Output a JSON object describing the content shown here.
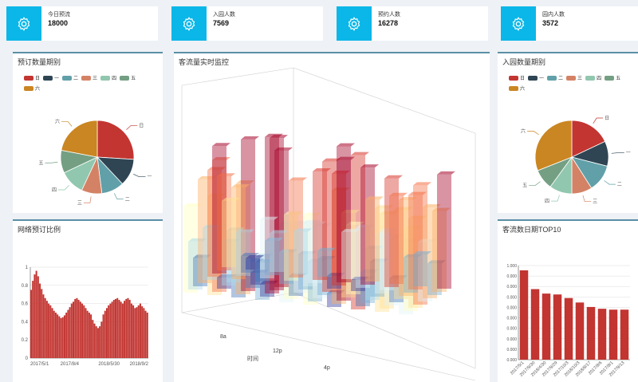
{
  "stats": [
    {
      "label": "今日预流",
      "value": "18000"
    },
    {
      "label": "入园人数",
      "value": "7569"
    },
    {
      "label": "预约人数",
      "value": "16278"
    },
    {
      "label": "园内人数",
      "value": "3572"
    }
  ],
  "colors": {
    "accent": "#0bb7e8",
    "pie": [
      "#c23531",
      "#2f4554",
      "#61a0a8",
      "#d48265",
      "#91c7ae",
      "#749f83",
      "#ca8622"
    ],
    "bar": "#c23531"
  },
  "panels": {
    "booking_pie_title": "预订数量期别",
    "network_title": "网络预订比例",
    "monitor_title": "客流量实时监控",
    "entry_pie_title": "入园数量期别",
    "top10_title": "客流数日期TOP10"
  },
  "legend": [
    "日",
    "一",
    "二",
    "三",
    "四",
    "五",
    "六"
  ],
  "monitor_labels": {
    "y_axis": "时间",
    "ticks": [
      "8a",
      "12p",
      "4p"
    ]
  },
  "chart_data": [
    {
      "type": "pie",
      "title": "预订数量期别",
      "categories": [
        "日",
        "一",
        "二",
        "三",
        "四",
        "五",
        "六"
      ],
      "values": [
        26,
        12,
        10,
        9,
        11,
        10,
        22
      ]
    },
    {
      "type": "area",
      "title": "网络预订比例",
      "x_ticks": [
        "2017/5/1",
        "2017/8/4",
        "2018/5/30",
        "2018/9/2"
      ],
      "ylim": [
        0,
        1
      ],
      "y_ticks": [
        "0",
        "0.2",
        "0.4",
        "0.6",
        "0.8",
        "1"
      ],
      "values": [
        0.75,
        0.85,
        0.92,
        0.96,
        0.9,
        0.82,
        0.76,
        0.7,
        0.66,
        0.63,
        0.6,
        0.58,
        0.55,
        0.52,
        0.5,
        0.48,
        0.46,
        0.44,
        0.45,
        0.47,
        0.5,
        0.53,
        0.56,
        0.6,
        0.62,
        0.65,
        0.66,
        0.64,
        0.62,
        0.6,
        0.58,
        0.55,
        0.52,
        0.5,
        0.48,
        0.42,
        0.38,
        0.35,
        0.33,
        0.35,
        0.4,
        0.48,
        0.52,
        0.55,
        0.58,
        0.6,
        0.62,
        0.64,
        0.65,
        0.66,
        0.64,
        0.62,
        0.6,
        0.63,
        0.65,
        0.66,
        0.64,
        0.6,
        0.58,
        0.55,
        0.56,
        0.58,
        0.6,
        0.57,
        0.55,
        0.52,
        0.5
      ]
    },
    {
      "type": "pie",
      "title": "入园数量期别",
      "categories": [
        "日",
        "一",
        "二",
        "三",
        "四",
        "五",
        "六"
      ],
      "values": [
        18,
        11,
        12,
        9,
        10,
        9,
        31
      ]
    },
    {
      "type": "bar",
      "title": "客流数日期TOP10",
      "categories": [
        "2017/5/1",
        "2017/9/30",
        "2018/4/30",
        "2017/9/29",
        "2017/10/3",
        "2018/10/3",
        "2018/8/17",
        "2017/8/6",
        "2017/8/1",
        "2017/9/13"
      ],
      "values": [
        1.0,
        0.79,
        0.74,
        0.73,
        0.69,
        0.64,
        0.59,
        0.57,
        0.56,
        0.56
      ],
      "y_ticks": [
        "0.000",
        "0.000",
        "0.000",
        "0.000",
        "0.000",
        "0.000",
        "0.000",
        "0.000",
        "0.000",
        "1.000"
      ]
    }
  ]
}
